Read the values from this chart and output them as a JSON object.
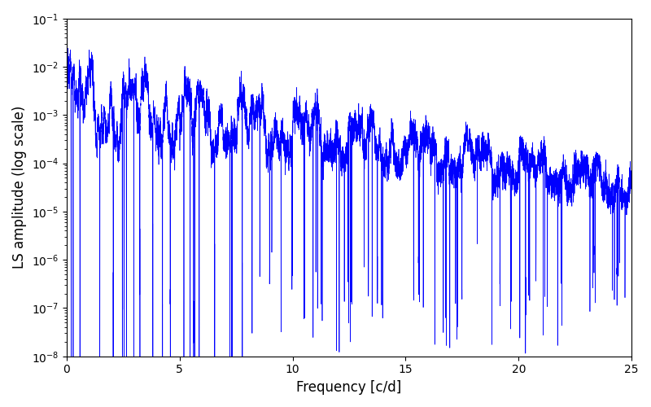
{
  "xlabel": "Frequency [c/d]",
  "ylabel": "LS amplitude (log scale)",
  "xlim": [
    0,
    25
  ],
  "ylim": [
    1e-08,
    0.1
  ],
  "line_color": "#0000ff",
  "line_width": 0.5,
  "background_color": "#ffffff",
  "figsize": [
    8.0,
    5.0
  ],
  "dpi": 100,
  "seed": 12345,
  "n_points": 8000,
  "freq_max": 25.0
}
